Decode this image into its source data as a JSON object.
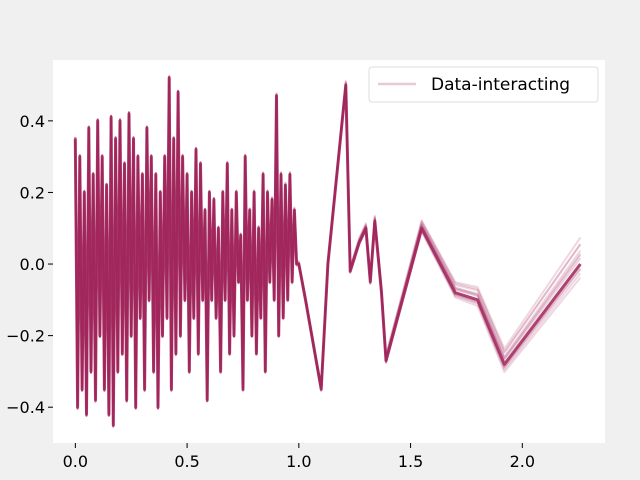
{
  "chart_data": {
    "type": "line",
    "title": "",
    "xlabel": "",
    "ylabel": "",
    "xlim": [
      -0.1,
      2.37
    ],
    "ylim": [
      -0.5,
      0.57
    ],
    "xticks": [
      0.0,
      0.5,
      1.0,
      1.5,
      2.0
    ],
    "xtick_labels": [
      "0.0",
      "0.5",
      "1.0",
      "1.5",
      "2.0"
    ],
    "yticks": [
      -0.4,
      -0.2,
      0.0,
      0.2,
      0.4
    ],
    "ytick_labels": [
      "−0.4",
      "−0.2",
      "0.0",
      "0.2",
      "0.4"
    ],
    "grid": false,
    "legend": {
      "position": "top-right",
      "entries": [
        "Data-interacting"
      ]
    },
    "series_color": "#a0245a",
    "plot_background": "#ffffff",
    "figure_background": "#f0f0f0",
    "ensemble_count": 12,
    "ensemble_spread": [
      0.0,
      0.035,
      0.07,
      -0.03,
      0.1,
      -0.05,
      0.055,
      0.02,
      -0.015,
      0.085,
      0.13,
      -0.07
    ],
    "series": [
      {
        "name": "Data-interacting",
        "x": [
          0.0,
          0.01,
          0.02,
          0.03,
          0.04,
          0.05,
          0.06,
          0.07,
          0.08,
          0.09,
          0.1,
          0.11,
          0.12,
          0.13,
          0.14,
          0.15,
          0.16,
          0.17,
          0.18,
          0.19,
          0.2,
          0.21,
          0.22,
          0.23,
          0.24,
          0.25,
          0.26,
          0.27,
          0.28,
          0.29,
          0.3,
          0.31,
          0.32,
          0.33,
          0.34,
          0.35,
          0.36,
          0.37,
          0.38,
          0.39,
          0.4,
          0.41,
          0.42,
          0.43,
          0.44,
          0.45,
          0.46,
          0.47,
          0.48,
          0.49,
          0.5,
          0.51,
          0.52,
          0.53,
          0.54,
          0.55,
          0.56,
          0.57,
          0.58,
          0.59,
          0.6,
          0.61,
          0.62,
          0.63,
          0.64,
          0.65,
          0.66,
          0.67,
          0.68,
          0.69,
          0.7,
          0.71,
          0.72,
          0.73,
          0.74,
          0.75,
          0.76,
          0.77,
          0.78,
          0.79,
          0.8,
          0.81,
          0.82,
          0.83,
          0.84,
          0.85,
          0.86,
          0.87,
          0.88,
          0.89,
          0.9,
          0.91,
          0.92,
          0.93,
          0.94,
          0.95,
          0.96,
          0.97,
          0.98,
          0.99,
          1.0,
          1.03,
          1.1,
          1.13,
          1.21,
          1.23,
          1.27,
          1.3,
          1.32,
          1.34,
          1.37,
          1.39,
          1.55,
          1.7,
          1.8,
          1.92,
          2.26
        ],
        "y": [
          0.35,
          -0.4,
          0.3,
          -0.35,
          0.2,
          -0.42,
          0.38,
          -0.3,
          0.25,
          -0.38,
          0.4,
          -0.2,
          0.3,
          -0.35,
          0.22,
          -0.42,
          0.41,
          -0.45,
          0.35,
          -0.3,
          0.4,
          -0.25,
          0.28,
          -0.38,
          0.42,
          -0.2,
          0.35,
          -0.4,
          0.3,
          -0.15,
          0.25,
          -0.35,
          0.38,
          -0.1,
          0.3,
          -0.3,
          0.25,
          -0.4,
          0.2,
          -0.2,
          0.3,
          -0.15,
          0.52,
          -0.35,
          0.35,
          -0.25,
          0.48,
          -0.2,
          0.3,
          -0.1,
          0.25,
          -0.3,
          0.2,
          -0.15,
          0.32,
          -0.25,
          0.28,
          -0.1,
          0.15,
          -0.38,
          0.2,
          -0.1,
          0.18,
          -0.15,
          0.1,
          -0.3,
          0.2,
          -0.1,
          0.28,
          -0.25,
          0.15,
          -0.2,
          0.2,
          -0.05,
          0.08,
          -0.35,
          0.3,
          -0.1,
          0.15,
          -0.2,
          0.2,
          -0.25,
          0.1,
          -0.15,
          0.25,
          -0.3,
          0.2,
          -0.05,
          0.18,
          -0.1,
          0.47,
          -0.2,
          0.25,
          -0.15,
          0.22,
          -0.1,
          0.25,
          -0.05,
          0.15,
          0.0,
          0.0,
          -0.1,
          -0.35,
          0.0,
          0.5,
          -0.02,
          0.06,
          0.1,
          -0.05,
          0.12,
          -0.08,
          -0.27,
          0.1,
          -0.08,
          -0.1,
          -0.28,
          0.0
        ]
      }
    ]
  }
}
